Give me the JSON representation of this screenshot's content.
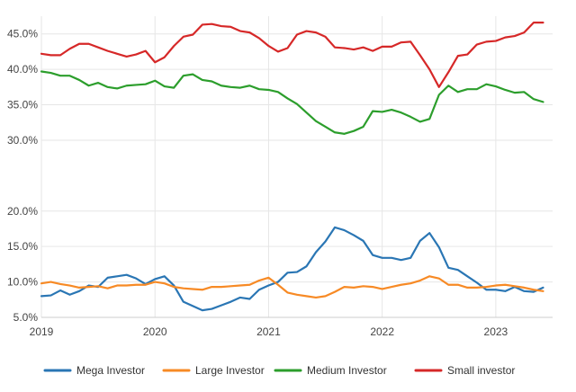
{
  "chart_data": {
    "type": "line",
    "title": "",
    "xlabel": "",
    "ylabel": "",
    "ylim": [
      5.0,
      47.5
    ],
    "xlim": [
      2019.0,
      2023.5
    ],
    "x_start": 2019.0,
    "x_step": 0.08333,
    "y_ticks": [
      5.0,
      10.0,
      15.0,
      20.0,
      30.0,
      35.0,
      40.0,
      45.0
    ],
    "y_tick_labels": [
      "5.0%",
      "10.0%",
      "15.0%",
      "20.0%",
      "30.0%",
      "35.0%",
      "40.0%",
      "45.0%"
    ],
    "x_ticks": [
      2019,
      2020,
      2021,
      2022,
      2023
    ],
    "x_tick_labels": [
      "2019",
      "2020",
      "2021",
      "2022",
      "2023"
    ],
    "grid": true,
    "legend_position": "bottom",
    "series": [
      {
        "name": "Mega Investor",
        "color": "#2a76b4",
        "values": [
          8.0,
          8.1,
          8.8,
          8.2,
          8.7,
          9.5,
          9.3,
          10.6,
          10.8,
          11.0,
          10.5,
          9.7,
          10.4,
          10.8,
          9.5,
          7.2,
          6.6,
          6.0,
          6.2,
          6.7,
          7.2,
          7.8,
          7.6,
          8.9,
          9.5,
          10.0,
          11.3,
          11.4,
          12.2,
          14.2,
          15.7,
          17.7,
          17.3,
          16.6,
          15.8,
          13.8,
          13.4,
          13.4,
          13.1,
          13.4,
          15.8,
          16.9,
          14.9,
          12.0,
          11.7,
          10.8,
          9.9,
          8.9,
          8.9,
          8.7,
          9.3,
          8.7,
          8.6,
          9.2
        ]
      },
      {
        "name": "Large Investor",
        "color": "#f78a25",
        "values": [
          9.8,
          10.0,
          9.7,
          9.5,
          9.2,
          9.3,
          9.4,
          9.1,
          9.5,
          9.5,
          9.6,
          9.6,
          10.0,
          9.8,
          9.3,
          9.1,
          9.0,
          8.9,
          9.3,
          9.3,
          9.4,
          9.5,
          9.6,
          10.2,
          10.6,
          9.6,
          8.5,
          8.2,
          8.0,
          7.8,
          8.0,
          8.6,
          9.3,
          9.2,
          9.4,
          9.3,
          9.0,
          9.3,
          9.6,
          9.8,
          10.2,
          10.8,
          10.5,
          9.6,
          9.6,
          9.2,
          9.2,
          9.3,
          9.5,
          9.6,
          9.4,
          9.2,
          8.9,
          8.7
        ]
      },
      {
        "name": "Medium Investor",
        "color": "#2c9e2c",
        "values": [
          39.7,
          39.5,
          39.1,
          39.1,
          38.5,
          37.7,
          38.1,
          37.5,
          37.3,
          37.7,
          37.8,
          37.9,
          38.4,
          37.6,
          37.4,
          39.1,
          39.3,
          38.5,
          38.3,
          37.7,
          37.5,
          37.4,
          37.7,
          37.2,
          37.1,
          36.8,
          35.9,
          35.1,
          33.9,
          32.7,
          31.9,
          31.1,
          30.9,
          31.3,
          31.9,
          34.1,
          34.0,
          34.3,
          33.9,
          33.3,
          32.6,
          33.0,
          36.4,
          37.7,
          36.8,
          37.2,
          37.2,
          37.9,
          37.6,
          37.1,
          36.7,
          36.8,
          35.8,
          35.4
        ]
      },
      {
        "name": "Small investor",
        "color": "#d62828",
        "values": [
          42.2,
          42.0,
          42.0,
          42.9,
          43.6,
          43.6,
          43.1,
          42.6,
          42.2,
          41.8,
          42.1,
          42.6,
          41.0,
          41.7,
          43.3,
          44.6,
          44.9,
          46.3,
          46.4,
          46.1,
          46.0,
          45.4,
          45.2,
          44.4,
          43.3,
          42.5,
          43.0,
          44.9,
          45.4,
          45.2,
          44.6,
          43.1,
          43.0,
          42.8,
          43.1,
          42.6,
          43.2,
          43.2,
          43.8,
          43.9,
          42.0,
          40.0,
          37.5,
          39.6,
          41.9,
          42.1,
          43.5,
          43.9,
          44.0,
          44.5,
          44.7,
          45.2,
          46.6,
          46.6
        ]
      }
    ]
  }
}
